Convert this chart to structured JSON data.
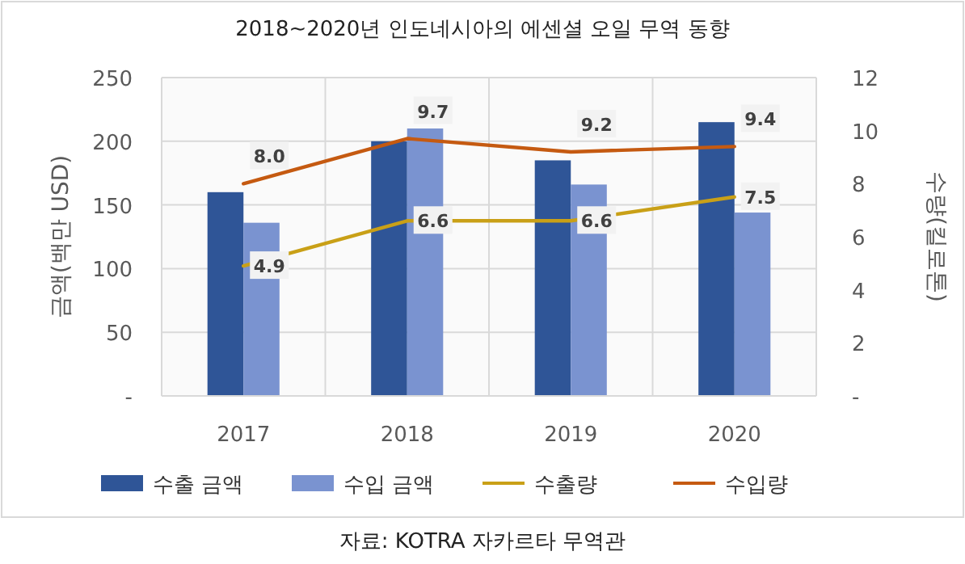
{
  "chart_data": {
    "type": "bar",
    "title": "2018~2020년 인도네시아의 에센셜 오일 무역 동향",
    "ylabel": "금액(백만 USD)",
    "y2label": "수량(킬로톤)",
    "categories": [
      "2017",
      "2018",
      "2019",
      "2020"
    ],
    "series": [
      {
        "name": "수출 금액",
        "color": "#2f5597",
        "values": [
          160,
          200,
          185,
          215
        ]
      },
      {
        "name": "수입 금액",
        "color": "#7a93d0",
        "values": [
          136,
          210,
          166,
          144
        ]
      },
      {
        "name": "수출량",
        "type": "line",
        "axis": "y2",
        "color": "#c9a017",
        "values": [
          4.9,
          6.6,
          6.6,
          7.5
        ],
        "value_labels": [
          "4.9",
          "6.6",
          "6.6",
          "7.5"
        ]
      },
      {
        "name": "수입량",
        "type": "line",
        "axis": "y2",
        "color": "#c55a11",
        "values": [
          8.0,
          9.7,
          9.2,
          9.4
        ],
        "value_labels": [
          "8.0",
          "9.7",
          "9.2",
          "9.4"
        ]
      }
    ],
    "ylim": [
      0,
      250
    ],
    "yticks": [
      {
        "value": 0,
        "label": "-"
      },
      50,
      100,
      150,
      200,
      250
    ],
    "y2lim": [
      0,
      12
    ],
    "y2ticks": [
      {
        "value": 0,
        "label": "-"
      },
      2,
      4,
      6,
      8,
      10,
      12
    ],
    "grid": true,
    "legend": "bottom",
    "marker": "none",
    "line_style": "solid",
    "annotations": [
      "자료: KOTRA 자카르타 무역관"
    ]
  }
}
